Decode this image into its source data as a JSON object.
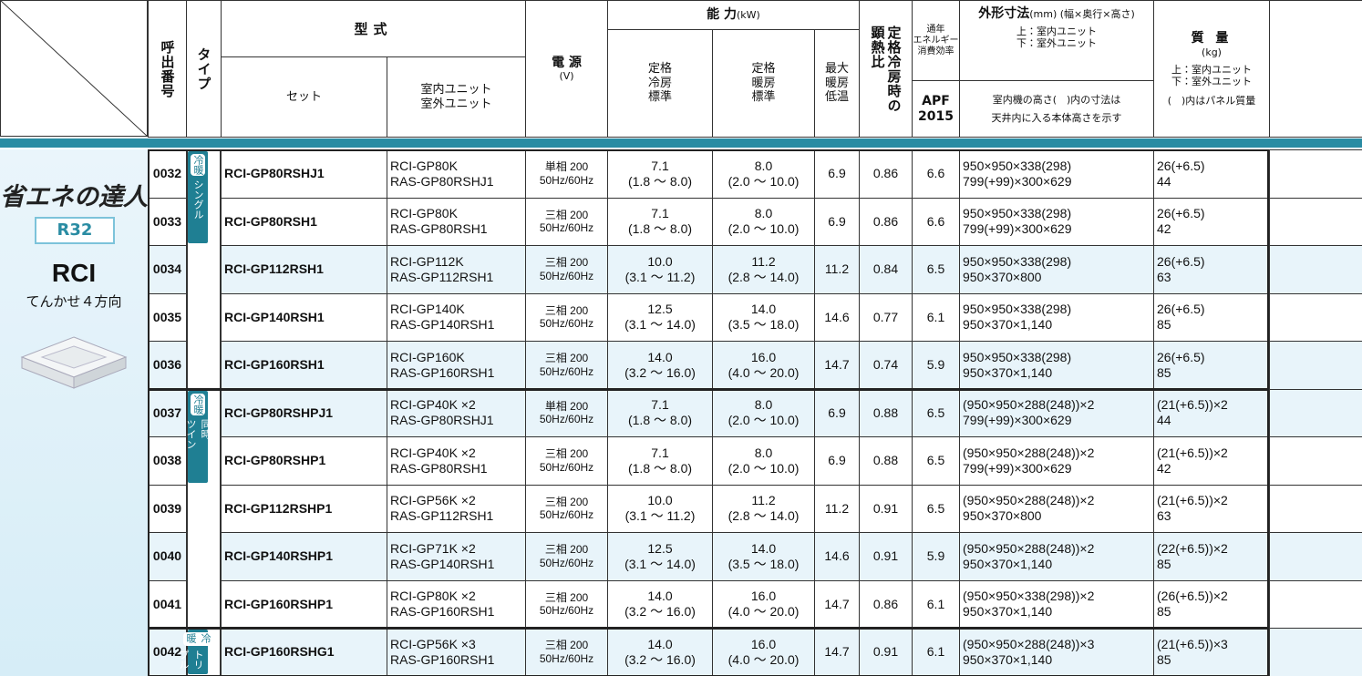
{
  "header": {
    "call_no": "呼出番号",
    "type": "タイプ",
    "model": "型式",
    "set": "セット",
    "units": "室内ユニット\n室外ユニット",
    "power": "電 源",
    "power_unit": "(V)",
    "capacity": "能 力",
    "capacity_unit": "(kW)",
    "cool": "定格\n冷房\n標準",
    "heat": "定格\n暖房\n標準",
    "max_heat": "最大\n暖房\n低温",
    "shr": "定格冷房時の\n顕熱比",
    "efficiency": "通年\nエネルギー\n消費効率",
    "apf": "APF\n2015",
    "dims": "外形寸法",
    "dims_unit": "(mm) (幅×奥行×高さ)",
    "dims_order": "上：室内ユニット\n下：室外ユニット",
    "dims_note": "室内機の高さ(　)内の寸法は\n天井内に入る本体高さを示す",
    "mass": "質 量",
    "mass_unit": "(kg)",
    "mass_order": "上：室内ユニット\n下：室外ユニット",
    "mass_note": "(　)内はパネル質量"
  },
  "side": {
    "logo": "省エネの達人",
    "refrigerant": "R32",
    "series": "RCI",
    "description": "てんかせ４方向"
  },
  "types": [
    {
      "badge": "冷暖",
      "label": "シングル"
    },
    {
      "badge": "冷暖",
      "label": "同時\nツイン"
    },
    {
      "badge": "冷暖",
      "label": "同時\nトリプル"
    }
  ],
  "rows": [
    {
      "id": "0032",
      "set": "RCI-GP80RSHJ1",
      "indoor": "RCI-GP80K",
      "outdoor": "RAS-GP80RSHJ1",
      "phase": "単相 200",
      "freq": "50Hz/60Hz",
      "cool": "7.1",
      "cool_range": "(1.8 ～ 8.0)",
      "heat": "8.0",
      "heat_range": "(2.0 ～ 10.0)",
      "max_heat": "6.9",
      "shr": "0.86",
      "apf": "6.6",
      "dim_in": "950×950×338(298)",
      "dim_out": "799(+99)×300×629",
      "mass_in": "26(+6.5)",
      "mass_out": "44"
    },
    {
      "id": "0033",
      "set": "RCI-GP80RSH1",
      "indoor": "RCI-GP80K",
      "outdoor": "RAS-GP80RSH1",
      "phase": "三相 200",
      "freq": "50Hz/60Hz",
      "cool": "7.1",
      "cool_range": "(1.8 ～ 8.0)",
      "heat": "8.0",
      "heat_range": "(2.0 ～ 10.0)",
      "max_heat": "6.9",
      "shr": "0.86",
      "apf": "6.6",
      "dim_in": "950×950×338(298)",
      "dim_out": "799(+99)×300×629",
      "mass_in": "26(+6.5)",
      "mass_out": "42"
    },
    {
      "id": "0034",
      "set": "RCI-GP112RSH1",
      "indoor": "RCI-GP112K",
      "outdoor": "RAS-GP112RSH1",
      "phase": "三相 200",
      "freq": "50Hz/60Hz",
      "cool": "10.0",
      "cool_range": "(3.1 ～ 11.2)",
      "heat": "11.2",
      "heat_range": "(2.8 ～ 14.0)",
      "max_heat": "11.2",
      "shr": "0.84",
      "apf": "6.5",
      "dim_in": "950×950×338(298)",
      "dim_out": "950×370×800",
      "mass_in": "26(+6.5)",
      "mass_out": "63"
    },
    {
      "id": "0035",
      "set": "RCI-GP140RSH1",
      "indoor": "RCI-GP140K",
      "outdoor": "RAS-GP140RSH1",
      "phase": "三相 200",
      "freq": "50Hz/60Hz",
      "cool": "12.5",
      "cool_range": "(3.1 ～ 14.0)",
      "heat": "14.0",
      "heat_range": "(3.5 ～ 18.0)",
      "max_heat": "14.6",
      "shr": "0.77",
      "apf": "6.1",
      "dim_in": "950×950×338(298)",
      "dim_out": "950×370×1,140",
      "mass_in": "26(+6.5)",
      "mass_out": "85"
    },
    {
      "id": "0036",
      "set": "RCI-GP160RSH1",
      "indoor": "RCI-GP160K",
      "outdoor": "RAS-GP160RSH1",
      "phase": "三相 200",
      "freq": "50Hz/60Hz",
      "cool": "14.0",
      "cool_range": "(3.2 ～ 16.0)",
      "heat": "16.0",
      "heat_range": "(4.0 ～ 20.0)",
      "max_heat": "14.7",
      "shr": "0.74",
      "apf": "5.9",
      "dim_in": "950×950×338(298)",
      "dim_out": "950×370×1,140",
      "mass_in": "26(+6.5)",
      "mass_out": "85"
    },
    {
      "id": "0037",
      "set": "RCI-GP80RSHPJ1",
      "indoor": "RCI-GP40K ×2",
      "outdoor": "RAS-GP80RSHJ1",
      "phase": "単相 200",
      "freq": "50Hz/60Hz",
      "cool": "7.1",
      "cool_range": "(1.8 ～ 8.0)",
      "heat": "8.0",
      "heat_range": "(2.0 ～ 10.0)",
      "max_heat": "6.9",
      "shr": "0.88",
      "apf": "6.5",
      "dim_in": "(950×950×288(248))×2",
      "dim_out": "799(+99)×300×629",
      "mass_in": "(21(+6.5))×2",
      "mass_out": "44"
    },
    {
      "id": "0038",
      "set": "RCI-GP80RSHP1",
      "indoor": "RCI-GP40K ×2",
      "outdoor": "RAS-GP80RSH1",
      "phase": "三相 200",
      "freq": "50Hz/60Hz",
      "cool": "7.1",
      "cool_range": "(1.8 ～ 8.0)",
      "heat": "8.0",
      "heat_range": "(2.0 ～ 10.0)",
      "max_heat": "6.9",
      "shr": "0.88",
      "apf": "6.5",
      "dim_in": "(950×950×288(248))×2",
      "dim_out": "799(+99)×300×629",
      "mass_in": "(21(+6.5))×2",
      "mass_out": "42"
    },
    {
      "id": "0039",
      "set": "RCI-GP112RSHP1",
      "indoor": "RCI-GP56K ×2",
      "outdoor": "RAS-GP112RSH1",
      "phase": "三相 200",
      "freq": "50Hz/60Hz",
      "cool": "10.0",
      "cool_range": "(3.1 ～ 11.2)",
      "heat": "11.2",
      "heat_range": "(2.8 ～ 14.0)",
      "max_heat": "11.2",
      "shr": "0.91",
      "apf": "6.5",
      "dim_in": "(950×950×288(248))×2",
      "dim_out": "950×370×800",
      "mass_in": "(21(+6.5))×2",
      "mass_out": "63"
    },
    {
      "id": "0040",
      "set": "RCI-GP140RSHP1",
      "indoor": "RCI-GP71K ×2",
      "outdoor": "RAS-GP140RSH1",
      "phase": "三相 200",
      "freq": "50Hz/60Hz",
      "cool": "12.5",
      "cool_range": "(3.1 ～ 14.0)",
      "heat": "14.0",
      "heat_range": "(3.5 ～ 18.0)",
      "max_heat": "14.6",
      "shr": "0.91",
      "apf": "5.9",
      "dim_in": "(950×950×288(248))×2",
      "dim_out": "950×370×1,140",
      "mass_in": "(22(+6.5))×2",
      "mass_out": "85"
    },
    {
      "id": "0041",
      "set": "RCI-GP160RSHP1",
      "indoor": "RCI-GP80K ×2",
      "outdoor": "RAS-GP160RSH1",
      "phase": "三相 200",
      "freq": "50Hz/60Hz",
      "cool": "14.0",
      "cool_range": "(3.2 ～ 16.0)",
      "heat": "16.0",
      "heat_range": "(4.0 ～ 20.0)",
      "max_heat": "14.7",
      "shr": "0.86",
      "apf": "6.1",
      "dim_in": "(950×950×338(298))×2",
      "dim_out": "950×370×1,140",
      "mass_in": "(26(+6.5))×2",
      "mass_out": "85"
    },
    {
      "id": "0042",
      "set": "RCI-GP160RSHG1",
      "indoor": "RCI-GP56K ×3",
      "outdoor": "RAS-GP160RSH1",
      "phase": "三相 200",
      "freq": "50Hz/60Hz",
      "cool": "14.0",
      "cool_range": "(3.2 ～ 16.0)",
      "heat": "16.0",
      "heat_range": "(4.0 ～ 20.0)",
      "max_heat": "14.7",
      "shr": "0.91",
      "apf": "6.1",
      "dim_in": "(950×950×288(248))×3",
      "dim_out": "950×370×1,140",
      "mass_in": "(21(+6.5))×3",
      "mass_out": "85"
    }
  ]
}
